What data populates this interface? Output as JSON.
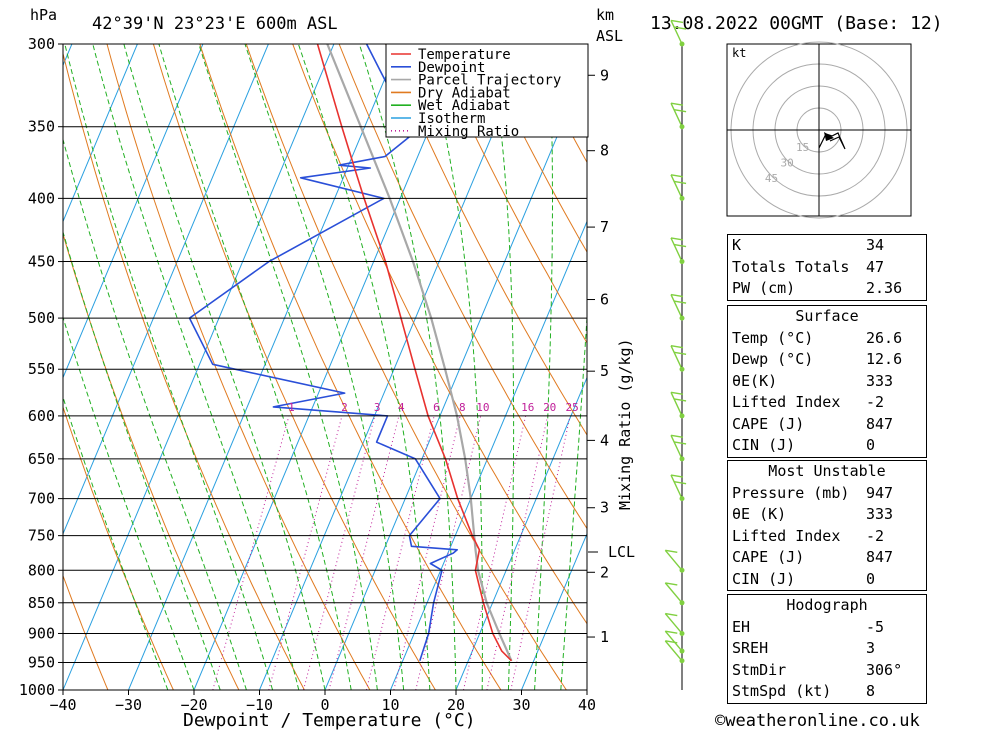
{
  "header": {
    "pressure_unit": "hPa",
    "location": "42°39'N  23°23'E  600m  ASL",
    "km_unit": "km",
    "km_sub": "ASL",
    "datetime": "13.08.2022  00GMT  (Base: 12)"
  },
  "credit": "©weatheronline.co.uk",
  "colors": {
    "temperature": "#e8322f",
    "dewpoint": "#2a4fd8",
    "parcel": "#a8a8a8",
    "dry_adiabat": "#e07a20",
    "wet_adiabat": "#22b022",
    "isotherm": "#2aa0e0",
    "mixing_ratio": "#c0209a",
    "wind": "#80d040"
  },
  "chart_data": {
    "type": "line",
    "title": "",
    "xlabel": "Dewpoint / Temperature (°C)",
    "ylabel": "hPa",
    "xlim": [
      -40,
      40
    ],
    "ylim": [
      1000,
      300
    ],
    "x_ticks": [
      -40,
      -30,
      -20,
      -10,
      0,
      10,
      20,
      30,
      40
    ],
    "pressure_levels": [
      300,
      350,
      400,
      450,
      500,
      550,
      600,
      650,
      700,
      750,
      800,
      850,
      900,
      950,
      1000
    ],
    "km_ticks": [
      {
        "km": 1,
        "p": 906
      },
      {
        "km": 2,
        "p": 803
      },
      {
        "km": 3,
        "p": 712
      },
      {
        "km": 4,
        "p": 628
      },
      {
        "km": 5,
        "p": 552
      },
      {
        "km": 6,
        "p": 483
      },
      {
        "km": 7,
        "p": 422
      },
      {
        "km": 8,
        "p": 366
      },
      {
        "km": 9,
        "p": 318
      }
    ],
    "lcl_label": "LCL",
    "lcl_pressure": 770,
    "mixing_ratio_axis_label": "Mixing Ratio (g/kg)",
    "mixing_ratio_values": [
      "1",
      "2",
      "3",
      "4",
      "6",
      "8",
      "10",
      "16",
      "20",
      "25"
    ],
    "mixing_ratio_label_pressure": 590,
    "legend": [
      "Temperature",
      "Dewpoint",
      "Parcel Trajectory",
      "Dry Adiabat",
      "Wet Adiabat",
      "Isotherm",
      "Mixing Ratio"
    ],
    "series": [
      {
        "name": "Temperature",
        "points": [
          [
            947,
            26.6
          ],
          [
            930,
            24.5
          ],
          [
            900,
            22.0
          ],
          [
            850,
            18.6
          ],
          [
            800,
            15.3
          ],
          [
            770,
            14.6
          ],
          [
            750,
            12.6
          ],
          [
            700,
            8.0
          ],
          [
            650,
            3.6
          ],
          [
            600,
            -1.8
          ],
          [
            550,
            -6.8
          ],
          [
            500,
            -12.2
          ],
          [
            450,
            -18.2
          ],
          [
            400,
            -25.5
          ],
          [
            380,
            -28.6
          ],
          [
            350,
            -33.5
          ],
          [
            300,
            -42.5
          ]
        ]
      },
      {
        "name": "Dewpoint",
        "points": [
          [
            947,
            12.6
          ],
          [
            900,
            12.2
          ],
          [
            850,
            11.0
          ],
          [
            800,
            10.2
          ],
          [
            790,
            8.0
          ],
          [
            775,
            10.8
          ],
          [
            770,
            11.2
          ],
          [
            765,
            4.0
          ],
          [
            750,
            3.0
          ],
          [
            700,
            5.3
          ],
          [
            650,
            -1.0
          ],
          [
            630,
            -8.0
          ],
          [
            600,
            -8.0
          ],
          [
            590,
            -26.0
          ],
          [
            575,
            -16.0
          ],
          [
            545,
            -38.0
          ],
          [
            500,
            -44.5
          ],
          [
            450,
            -36.0
          ],
          [
            400,
            -22.5
          ],
          [
            385,
            -36.5
          ],
          [
            378,
            -26.5
          ],
          [
            376,
            -31.5
          ],
          [
            370,
            -25.0
          ],
          [
            355,
            -22.2
          ],
          [
            300,
            -35.0
          ]
        ]
      },
      {
        "name": "Parcel Trajectory",
        "points": [
          [
            947,
            26.6
          ],
          [
            900,
            23.0
          ],
          [
            850,
            19.1
          ],
          [
            800,
            15.7
          ],
          [
            770,
            14.0
          ],
          [
            700,
            10.0
          ],
          [
            650,
            6.6
          ],
          [
            600,
            2.6
          ],
          [
            550,
            -2.2
          ],
          [
            500,
            -7.6
          ],
          [
            450,
            -14.0
          ],
          [
            400,
            -21.6
          ],
          [
            350,
            -30.6
          ],
          [
            300,
            -41.0
          ]
        ]
      }
    ],
    "hodograph": {
      "unit_label": "kt",
      "ring_labels": [
        "15",
        "30",
        "45"
      ]
    },
    "wind_barbs_pressures": [
      947,
      930,
      900,
      850,
      800,
      700,
      650,
      600,
      550,
      500,
      450,
      400,
      350,
      300
    ]
  },
  "indices": {
    "rows": [
      {
        "label": "K",
        "value": "34"
      },
      {
        "label": "Totals Totals",
        "value": "47"
      },
      {
        "label": "PW (cm)",
        "value": "2.36"
      }
    ]
  },
  "surface": {
    "title": "Surface",
    "rows": [
      {
        "label": "Temp (°C)",
        "value": "26.6"
      },
      {
        "label": "Dewp (°C)",
        "value": "12.6"
      },
      {
        "label": "θE(K)",
        "value": "333"
      },
      {
        "label": "Lifted Index",
        "value": "-2"
      },
      {
        "label": "CAPE (J)",
        "value": "847"
      },
      {
        "label": "CIN (J)",
        "value": "0"
      }
    ]
  },
  "most_unstable": {
    "title": "Most Unstable",
    "rows": [
      {
        "label": "Pressure (mb)",
        "value": "947"
      },
      {
        "label": "θE (K)",
        "value": "333"
      },
      {
        "label": "Lifted Index",
        "value": "-2"
      },
      {
        "label": "CAPE (J)",
        "value": "847"
      },
      {
        "label": "CIN (J)",
        "value": "0"
      }
    ]
  },
  "hodograph_table": {
    "title": "Hodograph",
    "rows": [
      {
        "label": "EH",
        "value": "-5"
      },
      {
        "label": "SREH",
        "value": "3"
      },
      {
        "label": "StmDir",
        "value": "306°"
      },
      {
        "label": "StmSpd (kt)",
        "value": "8"
      }
    ]
  }
}
